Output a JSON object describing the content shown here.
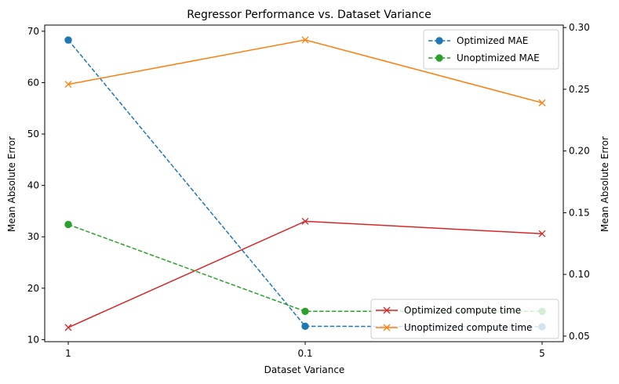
{
  "chart_data": {
    "type": "line",
    "title": "Regressor Performance vs. Dataset Variance",
    "xlabel": "Dataset Variance",
    "ylabel_left": "Mean Absolute Error",
    "ylabel_right": "Mean Absolute Error",
    "categories": [
      "1",
      "0.1",
      "5"
    ],
    "ylim_left": [
      9.6,
      71.2
    ],
    "ylim_right": [
      0.0455,
      0.302
    ],
    "yticks_left": [
      10,
      20,
      30,
      40,
      50,
      60,
      70
    ],
    "yticks_right": [
      0.05,
      0.1,
      0.15,
      0.2,
      0.25,
      0.3
    ],
    "yticks_right_labels": [
      "0.05",
      "0.10",
      "0.15",
      "0.20",
      "0.25",
      "0.30"
    ],
    "grid": false,
    "series": [
      {
        "name": "Optimized MAE",
        "axis": "left",
        "values": [
          68.3,
          12.6,
          12.5
        ],
        "color": "#1f77b4",
        "linestyle": "dashed",
        "marker": "circle"
      },
      {
        "name": "Unoptimized MAE",
        "axis": "left",
        "values": [
          32.4,
          15.5,
          15.5
        ],
        "color": "#2ca02c",
        "linestyle": "dashed",
        "marker": "circle"
      },
      {
        "name": "Optimized compute time",
        "axis": "right",
        "values": [
          0.057,
          0.143,
          0.133
        ],
        "color": "#d62728",
        "linestyle": "solid",
        "marker": "x"
      },
      {
        "name": "Unoptimized compute time",
        "axis": "right",
        "values": [
          0.254,
          0.29,
          0.239
        ],
        "color": "#ff7f0e",
        "linestyle": "solid",
        "marker": "x"
      }
    ],
    "legend_left_placement": "top-right",
    "legend_right_placement": "bottom-right"
  }
}
